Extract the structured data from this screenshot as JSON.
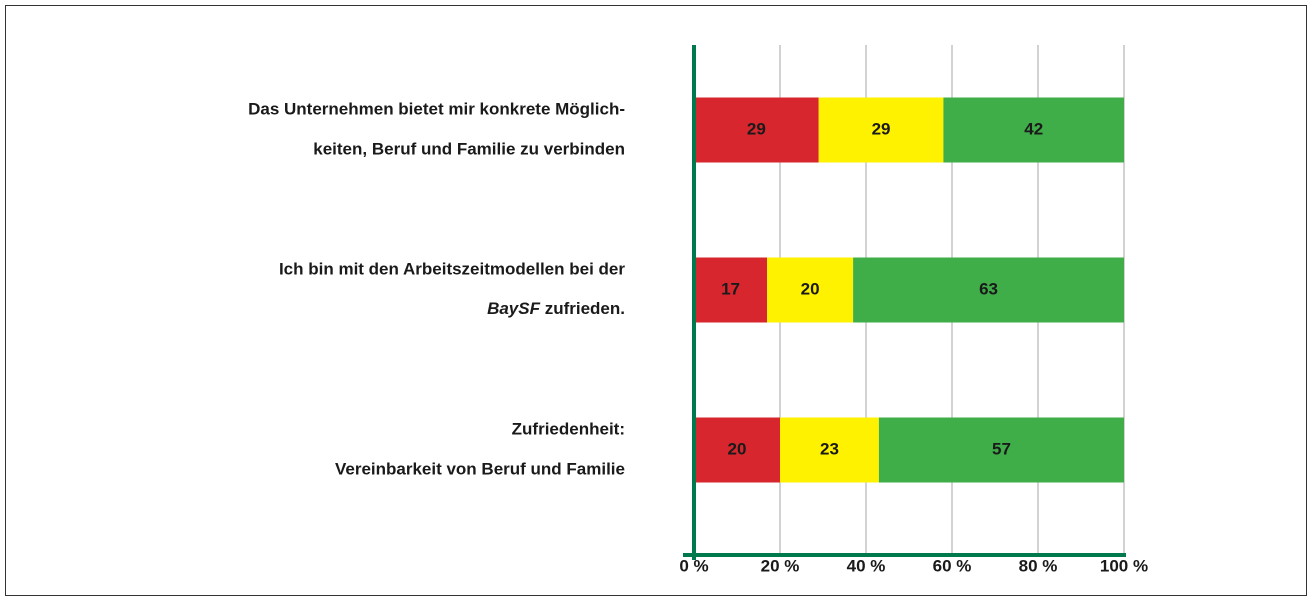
{
  "chart_data": {
    "type": "stacked-bar-horizontal",
    "categories": [
      [
        "Das Unternehmen bietet mir konkrete Möglich-",
        "keiten, Beruf und Familie zu verbinden"
      ],
      [
        "Ich bin mit den Arbeitszeitmodellen bei der",
        [
          {
            "text": "BaySF",
            "italic": true
          },
          {
            "text": " zufrieden."
          }
        ]
      ],
      [
        "Zufriedenheit:",
        "Vereinbarkeit von Beruf und Familie"
      ]
    ],
    "series": [
      {
        "color": "#d7262e",
        "values": [
          29,
          17,
          20
        ]
      },
      {
        "color": "#fff200",
        "values": [
          29,
          20,
          23
        ]
      },
      {
        "color": "#3fae49",
        "values": [
          42,
          63,
          57
        ]
      }
    ],
    "xlim": [
      0,
      100
    ],
    "xticks": [
      {
        "value": 0,
        "label": "0 %"
      },
      {
        "value": 20,
        "label": "20 %"
      },
      {
        "value": 40,
        "label": "40 %"
      },
      {
        "value": 60,
        "label": "60 %"
      },
      {
        "value": 80,
        "label": "80 %"
      },
      {
        "value": 100,
        "label": "100 %"
      }
    ],
    "grid": true
  }
}
